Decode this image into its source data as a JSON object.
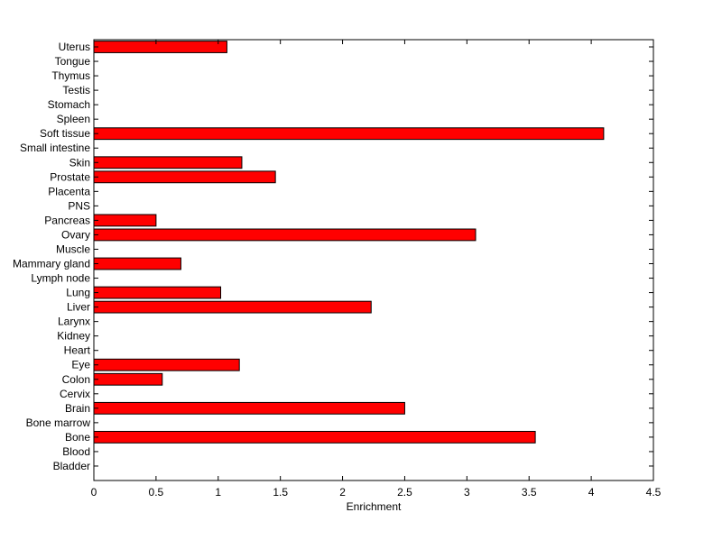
{
  "chart_data": {
    "type": "bar",
    "orientation": "horizontal",
    "title": "",
    "xlabel": "Enrichment",
    "ylabel": "",
    "xlim": [
      0,
      4.5
    ],
    "xticks": [
      "0",
      "0.5",
      "1",
      "1.5",
      "2",
      "2.5",
      "3",
      "3.5",
      "4",
      "4.5"
    ],
    "bar_color": "#ff0000",
    "categories": [
      "Bladder",
      "Blood",
      "Bone",
      "Bone marrow",
      "Brain",
      "Cervix",
      "Colon",
      "Eye",
      "Heart",
      "Kidney",
      "Larynx",
      "Liver",
      "Lung",
      "Lymph node",
      "Mammary gland",
      "Muscle",
      "Ovary",
      "Pancreas",
      "PNS",
      "Placenta",
      "Prostate",
      "Skin",
      "Small intestine",
      "Soft tissue",
      "Spleen",
      "Stomach",
      "Testis",
      "Thymus",
      "Tongue",
      "Uterus"
    ],
    "values": [
      0,
      0,
      3.55,
      0,
      2.5,
      0,
      0.55,
      1.17,
      0,
      0,
      0,
      2.23,
      1.02,
      0,
      0.7,
      0,
      3.07,
      0.5,
      0,
      0,
      1.46,
      1.19,
      0,
      4.1,
      0,
      0,
      0,
      0,
      0,
      1.07
    ]
  }
}
